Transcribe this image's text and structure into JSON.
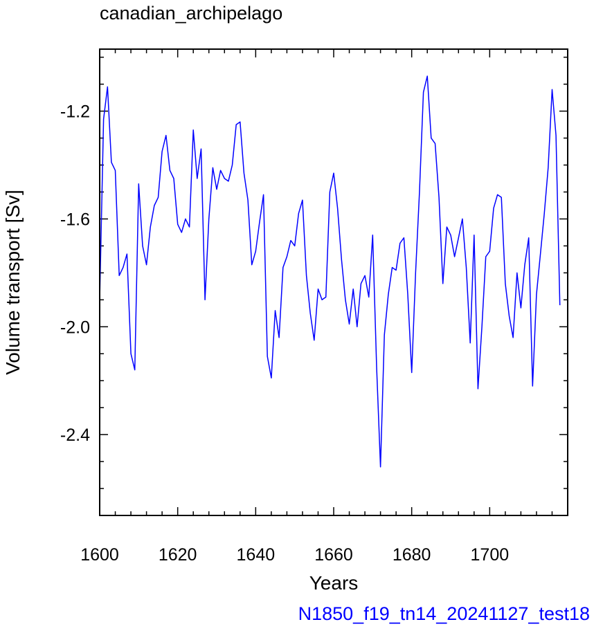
{
  "chart_data": {
    "type": "line",
    "title": "canadian_archipelago",
    "xlabel": "Years",
    "ylabel": "Volume transport [Sv]",
    "footer": "N1850_f19_tn14_20241127_test18",
    "xlim": [
      1600,
      1720
    ],
    "ylim": [
      -2.7,
      -0.97
    ],
    "x_ticks": [
      1600,
      1620,
      1640,
      1660,
      1680,
      1700
    ],
    "y_ticks": [
      -1.2,
      -1.6,
      -2.0,
      -2.4
    ],
    "grid": false,
    "line_color": "#0000ff",
    "series": [
      {
        "x_start": 1600,
        "x_step": 1,
        "values": [
          -1.9,
          -1.23,
          -1.11,
          -1.39,
          -1.42,
          -1.81,
          -1.78,
          -1.73,
          -2.1,
          -2.16,
          -1.47,
          -1.7,
          -1.77,
          -1.63,
          -1.55,
          -1.52,
          -1.35,
          -1.29,
          -1.42,
          -1.45,
          -1.62,
          -1.65,
          -1.6,
          -1.63,
          -1.27,
          -1.45,
          -1.34,
          -1.9,
          -1.6,
          -1.41,
          -1.49,
          -1.42,
          -1.45,
          -1.46,
          -1.4,
          -1.25,
          -1.24,
          -1.43,
          -1.53,
          -1.77,
          -1.72,
          -1.61,
          -1.51,
          -2.11,
          -2.19,
          -1.94,
          -2.04,
          -1.78,
          -1.74,
          -1.68,
          -1.7,
          -1.58,
          -1.53,
          -1.81,
          -1.95,
          -2.05,
          -1.86,
          -1.9,
          -1.89,
          -1.5,
          -1.43,
          -1.56,
          -1.75,
          -1.9,
          -1.99,
          -1.86,
          -2.0,
          -1.84,
          -1.81,
          -1.89,
          -1.66,
          -2.15,
          -2.52,
          -2.03,
          -1.88,
          -1.78,
          -1.79,
          -1.69,
          -1.67,
          -1.88,
          -2.17,
          -1.8,
          -1.5,
          -1.13,
          -1.07,
          -1.3,
          -1.32,
          -1.52,
          -1.84,
          -1.63,
          -1.66,
          -1.74,
          -1.67,
          -1.6,
          -1.78,
          -2.06,
          -1.66,
          -2.23,
          -2.0,
          -1.74,
          -1.72,
          -1.56,
          -1.51,
          -1.52,
          -1.84,
          -1.96,
          -2.04,
          -1.8,
          -1.93,
          -1.77,
          -1.67,
          -2.22,
          -1.88,
          -1.73,
          -1.58,
          -1.41,
          -1.12,
          -1.29,
          -1.92
        ]
      }
    ]
  }
}
